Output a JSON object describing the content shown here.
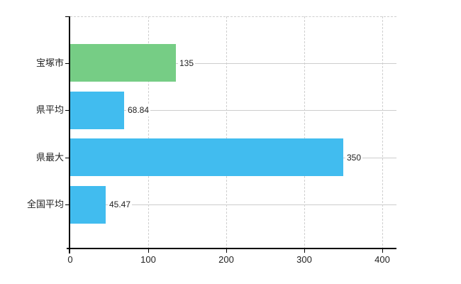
{
  "page": {
    "background": "#ffffff"
  },
  "chart_data": {
    "type": "bar",
    "orientation": "horizontal",
    "title": "",
    "categories": [
      "宝塚市",
      "県平均",
      "県最大",
      "全国平均"
    ],
    "values": [
      135,
      68.84,
      350,
      45.47
    ],
    "value_labels": [
      "135",
      "68.84",
      "350",
      "45.47"
    ],
    "bar_colors": [
      "#76cd85",
      "#41bcef",
      "#41bcef",
      "#41bcef"
    ],
    "x_tick_labels": [
      "0",
      "100",
      "200",
      "300",
      "400"
    ],
    "x_tick_values": [
      0,
      100,
      200,
      300,
      400
    ],
    "xlim": [
      0,
      418
    ],
    "grid": true,
    "grid_vertical_style": "dashed",
    "grid_horizontal_style": "solid",
    "legend": false,
    "xlabel": "",
    "ylabel": ""
  },
  "colors": {
    "axis": "#000000",
    "grid": "#cfcfcf",
    "text": "#222222",
    "bar_green": "#76cd85",
    "bar_blue": "#41bcef",
    "plot_background": "#ffffff"
  }
}
